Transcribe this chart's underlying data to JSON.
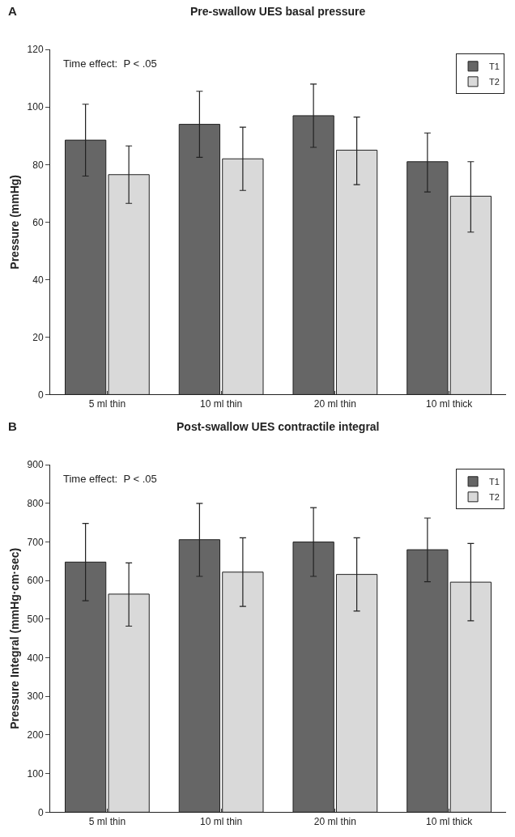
{
  "chart_data": [
    {
      "type": "bar",
      "title": "Pre-swallow UES basal pressure",
      "ylabel": "Pressure (mmHg)",
      "annotations": [
        "A",
        "Time effect:  P < .05"
      ],
      "categories": [
        "5 ml thin",
        "10 ml thin",
        "20 ml thin",
        "10 ml thick"
      ],
      "ylim": [
        0,
        120
      ],
      "yticks": [
        0,
        20,
        40,
        60,
        80,
        100,
        120
      ],
      "legend": "top right",
      "series": [
        {
          "name": "T1",
          "color": "#666666",
          "values": [
            88.5,
            94,
            97,
            81
          ],
          "errors": [
            [
              76,
              101
            ],
            [
              82.5,
              105.5
            ],
            [
              86,
              108
            ],
            [
              70.5,
              91
            ]
          ]
        },
        {
          "name": "T2",
          "color": "#d9d9d9",
          "values": [
            76.5,
            82,
            85,
            69
          ],
          "errors": [
            [
              66.5,
              86.5
            ],
            [
              71,
              93
            ],
            [
              73,
              96.5
            ],
            [
              56.5,
              81
            ]
          ]
        }
      ]
    },
    {
      "type": "bar",
      "title": "Post-swallow UES contractile integral",
      "ylabel": "Pressure Integral (mmHg·cm·sec)",
      "annotations": [
        "B",
        "Time effect:  P < .05"
      ],
      "categories": [
        "5 ml thin",
        "10 ml thin",
        "20 ml thin",
        "10 ml thick"
      ],
      "ylim": [
        0,
        900
      ],
      "yticks": [
        0,
        100,
        200,
        300,
        400,
        500,
        600,
        700,
        800,
        900
      ],
      "legend": "top right",
      "series": [
        {
          "name": "T1",
          "color": "#666666",
          "values": [
            648,
            706,
            700,
            680
          ],
          "errors": [
            [
              548,
              748
            ],
            [
              611,
              800
            ],
            [
              611,
              789
            ],
            [
              597,
              762
            ]
          ]
        },
        {
          "name": "T2",
          "color": "#d9d9d9",
          "values": [
            565,
            622,
            616,
            596
          ],
          "errors": [
            [
              482,
              646
            ],
            [
              533,
              711
            ],
            [
              521,
              711
            ],
            [
              496,
              696
            ]
          ]
        }
      ]
    }
  ]
}
